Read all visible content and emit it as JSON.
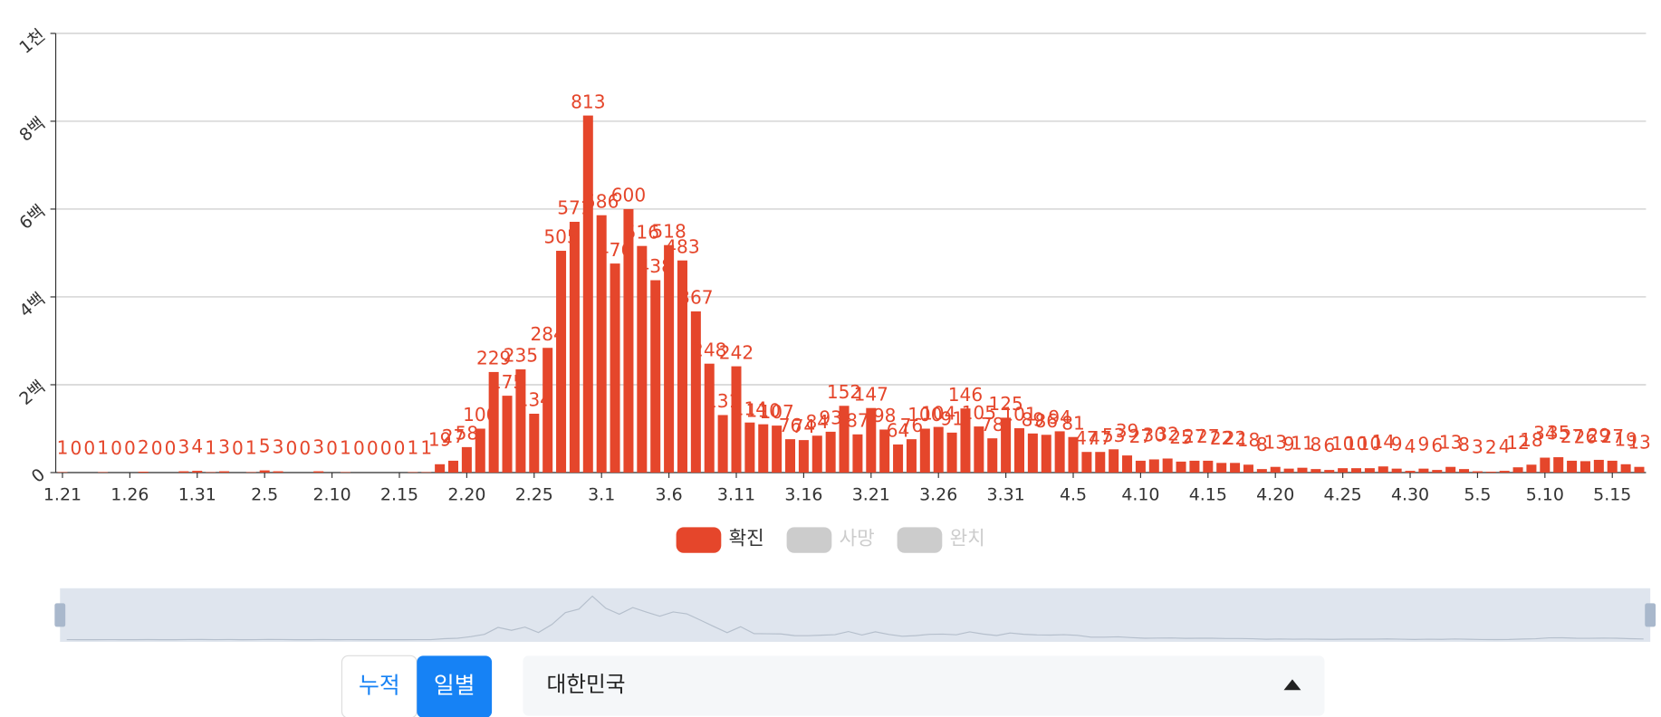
{
  "chart_data": {
    "type": "bar",
    "categories": [
      "1.21",
      null,
      null,
      null,
      null,
      "1.26",
      null,
      null,
      null,
      null,
      "1.31",
      null,
      null,
      null,
      null,
      "2.5",
      null,
      null,
      null,
      null,
      "2.10",
      null,
      null,
      null,
      null,
      "2.15",
      null,
      null,
      null,
      null,
      "2.20",
      null,
      null,
      null,
      null,
      "2.25",
      null,
      null,
      null,
      null,
      "3.1",
      null,
      null,
      null,
      null,
      "3.6",
      null,
      null,
      null,
      null,
      "3.11",
      null,
      null,
      null,
      null,
      "3.16",
      null,
      null,
      null,
      null,
      "3.21",
      null,
      null,
      null,
      null,
      "3.26",
      null,
      null,
      null,
      null,
      "3.31",
      null,
      null,
      null,
      null,
      "4.5",
      null,
      null,
      null,
      null,
      "4.10",
      null,
      null,
      null,
      null,
      "4.15",
      null,
      null,
      null,
      null,
      "4.20",
      null,
      null,
      null,
      null,
      "4.25",
      null,
      null,
      null,
      null,
      "4.30",
      null,
      null,
      null,
      null,
      "5.5",
      null,
      null,
      null,
      null,
      "5.10",
      null,
      null,
      null,
      null,
      "5.15",
      null,
      null
    ],
    "series": [
      {
        "name": "확진",
        "color": "#e5462b",
        "visible": true,
        "values": [
          1,
          0,
          0,
          1,
          0,
          0,
          2,
          0,
          0,
          3,
          4,
          1,
          3,
          0,
          1,
          5,
          3,
          0,
          0,
          3,
          0,
          1,
          0,
          0,
          0,
          0,
          1,
          1,
          19,
          27,
          58,
          100,
          229,
          175,
          235,
          134,
          284,
          505,
          571,
          813,
          586,
          476,
          600,
          516,
          438,
          518,
          483,
          367,
          248,
          131,
          242,
          114,
          110,
          107,
          76,
          74,
          84,
          93,
          152,
          87,
          147,
          98,
          64,
          76,
          100,
          104,
          91,
          146,
          105,
          78,
          125,
          101,
          89,
          86,
          94,
          81,
          47,
          47,
          53,
          39,
          27,
          30,
          32,
          25,
          27,
          27,
          22,
          22,
          18,
          8,
          13,
          9,
          11,
          8,
          6,
          10,
          10,
          10,
          14,
          9,
          4,
          9,
          6,
          13,
          8,
          3,
          2,
          4,
          12,
          18,
          34,
          35,
          27,
          26,
          29,
          27,
          19,
          13
        ]
      },
      {
        "name": "사망",
        "color": "#cccccc",
        "visible": false
      },
      {
        "name": "완치",
        "color": "#cccccc",
        "visible": false
      }
    ],
    "ylim": [
      0,
      1000
    ],
    "yticks": [
      0,
      {
        "value": 200,
        "label": "2백"
      },
      {
        "value": 400,
        "label": "4백"
      },
      {
        "value": 600,
        "label": "6백"
      },
      {
        "value": 800,
        "label": "8백"
      },
      {
        "value": 1000,
        "label": "1천"
      }
    ],
    "grid": true,
    "legend": "bottom"
  },
  "controls": {
    "toggle": [
      "누적",
      "일별"
    ],
    "selected": 1,
    "dropdown": "대한민국"
  }
}
